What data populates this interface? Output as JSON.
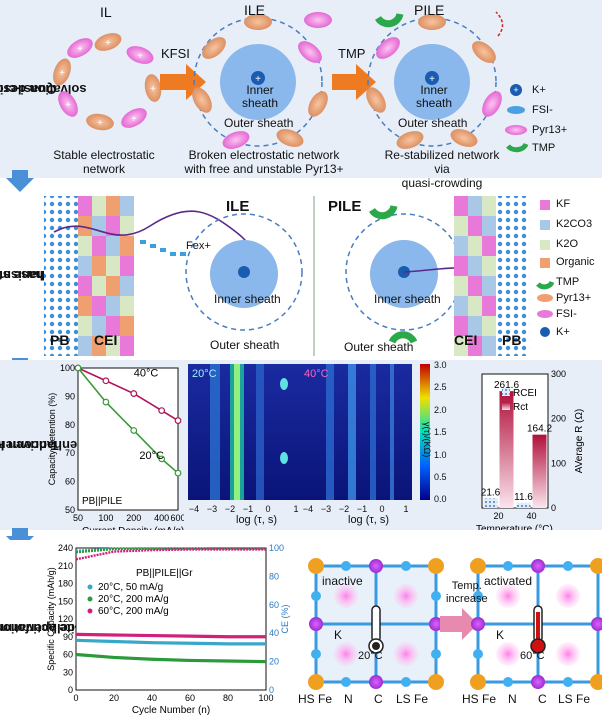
{
  "bands": [
    {
      "label_line1": "Quasi-crowding",
      "label_line2": "solvation design"
    },
    {
      "label_line1": "Interphase stabilization",
      "label_line2": "mechanism"
    },
    {
      "label_line1": "T-driven kinetics",
      "label_line2": "enhancement"
    },
    {
      "label_line1": "Site activation-enhanced",
      "label_line2": "full cell performance"
    }
  ],
  "panel1": {
    "il_title": "IL",
    "ile_title": "ILE",
    "pile_title": "PILE",
    "kfsi": "KFSI",
    "tmp": "TMP",
    "inner_sheath": "Inner sheath",
    "outer_sheath": "Outer sheath",
    "caption_il_1": "Stable electrostatic",
    "caption_il_2": "network",
    "caption_ile_1": "Broken electrostatic network",
    "caption_ile_2": "with free and unstable Pyr13+",
    "caption_pile_1": "Re-stabilized network via",
    "caption_pile_2": "quasi-crowding mechanism",
    "legend": [
      "K+",
      "FSI-",
      "Pyr13+",
      "TMP"
    ]
  },
  "panel2": {
    "ile_title": "ILE",
    "pile_title": "PILE",
    "pb": "PB",
    "cei": "CEI",
    "fe": "Fex+",
    "inner_sheath": "Inner sheath",
    "outer_sheath": "Outer sheath",
    "legend": [
      "KF",
      "K2CO3",
      "K2O",
      "Organic",
      "TMP",
      "Pyr13+",
      "FSI-",
      "K+"
    ],
    "colors": {
      "KF": "#e879d8",
      "K2CO3": "#a9c8e8",
      "K2O": "#d9e8c4",
      "Organic": "#f0a070"
    }
  },
  "panel3": {
    "retention": {
      "ylabel": "Capacity Retention (%)",
      "xlabel": "Current Density (mA/g)",
      "tag": "PB||PILE",
      "label40": "40°C",
      "label20": "20°C"
    },
    "drt": {
      "label20": "20°C",
      "label40": "40°C",
      "xlabel": "log (τ, s)",
      "cbar_label": "γ(τ)/(KΩ)",
      "cbar_ticks": [
        "3.0",
        "2.5",
        "2.0",
        "1.5",
        "1.0",
        "0.5",
        "0.0"
      ]
    },
    "resistance": {
      "ylabel": "AVerage R (Ω)",
      "xlabel": "Temperature (°C)",
      "legend": [
        "RCEI",
        "Rct"
      ]
    }
  },
  "panel4": {
    "cycling": {
      "title": "PB||PILE||Gr",
      "ylabel_left": "Specific Capacity (mAh/g)",
      "ylabel_right": "CE (%)",
      "xlabel": "Cycle Number (n)",
      "legend": [
        "20°C,   50 mA/g",
        "20°C, 200 mA/g",
        "60°C, 200 mA/g"
      ]
    },
    "lattice": {
      "inactive": "inactive",
      "activated": "activated",
      "temp_low": "20°C",
      "temp_high": "60°C",
      "arrow_label_1": "Temp.",
      "arrow_label_2": "increase",
      "site_k": "K",
      "bottom_labels": [
        "HS Fe",
        "N",
        "C",
        "LS Fe"
      ]
    }
  },
  "chart_data": [
    {
      "type": "line",
      "title": "",
      "xlabel": "Current Density (mA/g)",
      "ylabel": "Capacity Retention (%)",
      "x_scale": "log",
      "x_ticks": [
        50,
        100,
        200,
        400,
        600
      ],
      "y_ticks": [
        50,
        60,
        70,
        80,
        90,
        100
      ],
      "xlim": [
        50,
        600
      ],
      "ylim": [
        50,
        100
      ],
      "series": [
        {
          "name": "40°C",
          "color": "#b0145a",
          "x": [
            50,
            100,
            200,
            400,
            600
          ],
          "y": [
            100,
            95.5,
            91,
            85,
            81.5
          ]
        },
        {
          "name": "20°C",
          "color": "#3a9a3a",
          "x": [
            50,
            100,
            200,
            400,
            600
          ],
          "y": [
            100,
            88,
            78,
            68,
            63
          ]
        }
      ]
    },
    {
      "type": "heatmap",
      "xlabel": "log (τ, s)",
      "x_ticks": [
        -4,
        -3,
        -2,
        -1,
        0,
        1
      ],
      "colorbar": {
        "label": "γ(τ)/(KΩ)",
        "range": [
          0,
          3
        ]
      },
      "panels": [
        "20°C",
        "40°C"
      ]
    },
    {
      "type": "bar",
      "xlabel": "Temperature (°C)",
      "ylabel": "AVerage R (Ω)",
      "categories": [
        "20",
        "40"
      ],
      "ylim": [
        0,
        300
      ],
      "y_ticks": [
        0,
        100,
        200,
        300
      ],
      "series": [
        {
          "name": "RCEI",
          "values": [
            21.6,
            11.6
          ]
        },
        {
          "name": "Rct",
          "values": [
            261.6,
            164.2
          ]
        }
      ]
    },
    {
      "type": "scatter",
      "xlabel": "Cycle Number (n)",
      "ylabel": "Specific Capacity (mAh/g)",
      "y2label": "CE (%)",
      "xlim": [
        0,
        100
      ],
      "ylim": [
        0,
        240
      ],
      "y2lim": [
        0,
        100
      ],
      "x_ticks": [
        0,
        20,
        40,
        60,
        80,
        100
      ],
      "y_ticks": [
        0,
        30,
        60,
        90,
        120,
        150,
        180,
        210,
        240
      ],
      "y2_ticks": [
        0,
        20,
        40,
        60,
        80,
        100
      ],
      "series": [
        {
          "name": "20°C, 50 mA/g",
          "color": "#38a8c8",
          "capacity": [
            84,
            82,
            80,
            79,
            78,
            78
          ],
          "ce": [
            98,
            99.5,
            99.6,
            99.6,
            99.7,
            99.7
          ]
        },
        {
          "name": "20°C, 200 mA/g",
          "color": "#2a9a3a",
          "capacity": [
            60,
            55,
            52,
            50,
            49,
            48
          ],
          "ce": [
            97,
            99.3,
            99.5,
            99.5,
            99.6,
            99.6
          ]
        },
        {
          "name": "60°C, 200 mA/g",
          "color": "#d0207a",
          "capacity": [
            94,
            93,
            92,
            91,
            90,
            90
          ],
          "ce": [
            92,
            97.5,
            98.5,
            99,
            99,
            99
          ]
        }
      ],
      "cycles": [
        0,
        20,
        40,
        60,
        80,
        100
      ]
    }
  ]
}
